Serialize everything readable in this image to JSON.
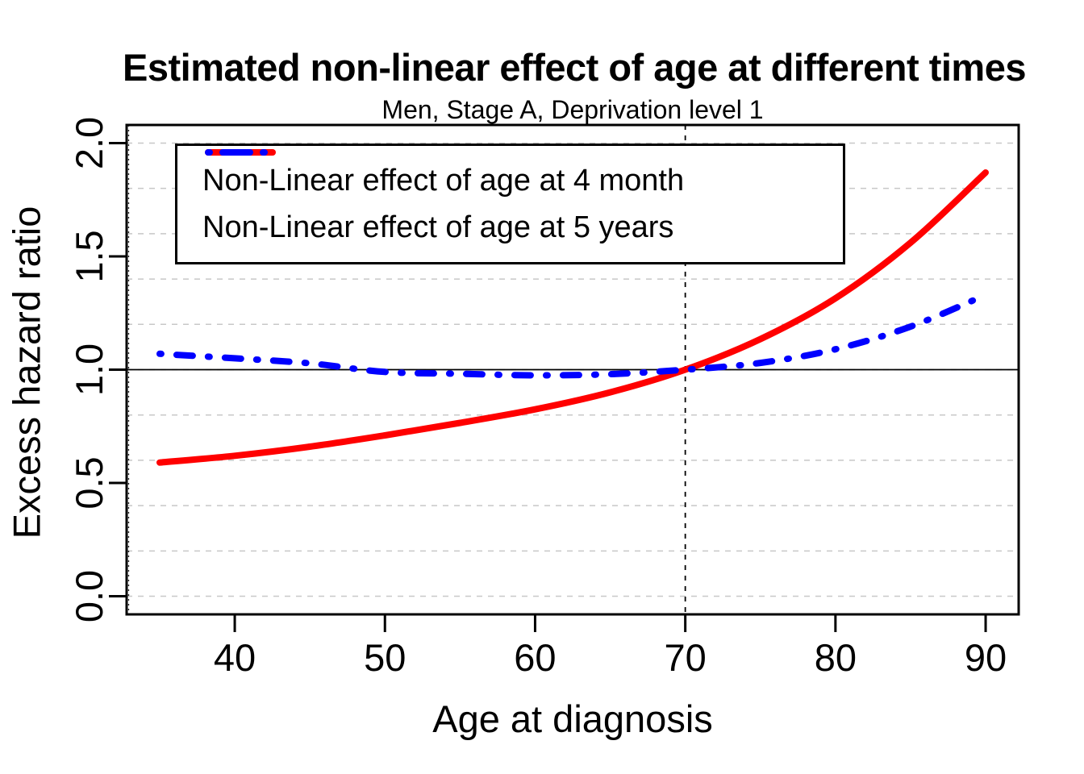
{
  "chart_data": {
    "type": "line",
    "title": "Estimated non-linear effect of age at different times",
    "subtitle": "Men, Stage A, Deprivation level 1",
    "xlabel": "Age at diagnosis",
    "ylabel": "Excess hazard ratio",
    "xlim": [
      32.8,
      92.2
    ],
    "ylim": [
      -0.08,
      2.08
    ],
    "x_ticks": [
      "40",
      "50",
      "60",
      "70",
      "80",
      "90"
    ],
    "x_tick_values": [
      40,
      50,
      60,
      70,
      80,
      90
    ],
    "y_ticks": [
      "0.0",
      "0.5",
      "1.0",
      "1.5",
      "2.0"
    ],
    "y_tick_values": [
      0,
      0.5,
      1,
      1.5,
      2
    ],
    "grid": {
      "y_start": 0,
      "y_end": 2,
      "y_step": 0.2,
      "color": "#C8C8C8",
      "style": "dashed",
      "vertical": false
    },
    "reference_lines": {
      "horizontal_y": 1.0,
      "vertical_x": 70
    },
    "x": [
      35,
      40,
      45,
      50,
      55,
      60,
      65,
      70,
      75,
      80,
      85,
      90
    ],
    "series": [
      {
        "name": "Non-Linear effect of age at 4 month",
        "color": "#FF0000",
        "line_style": "solid",
        "values": [
          0.59,
          0.62,
          0.66,
          0.71,
          0.765,
          0.825,
          0.9,
          1.0,
          1.135,
          1.315,
          1.56,
          1.87
        ]
      },
      {
        "name": "Non-Linear effect of age at 5 years",
        "color": "#0000FF",
        "line_style": "dash-dot",
        "values": [
          1.07,
          1.05,
          1.028,
          0.99,
          0.982,
          0.975,
          0.98,
          1.0,
          1.03,
          1.09,
          1.19,
          1.33
        ]
      }
    ],
    "legend_position": "top-left",
    "axis_color": "#000000"
  }
}
